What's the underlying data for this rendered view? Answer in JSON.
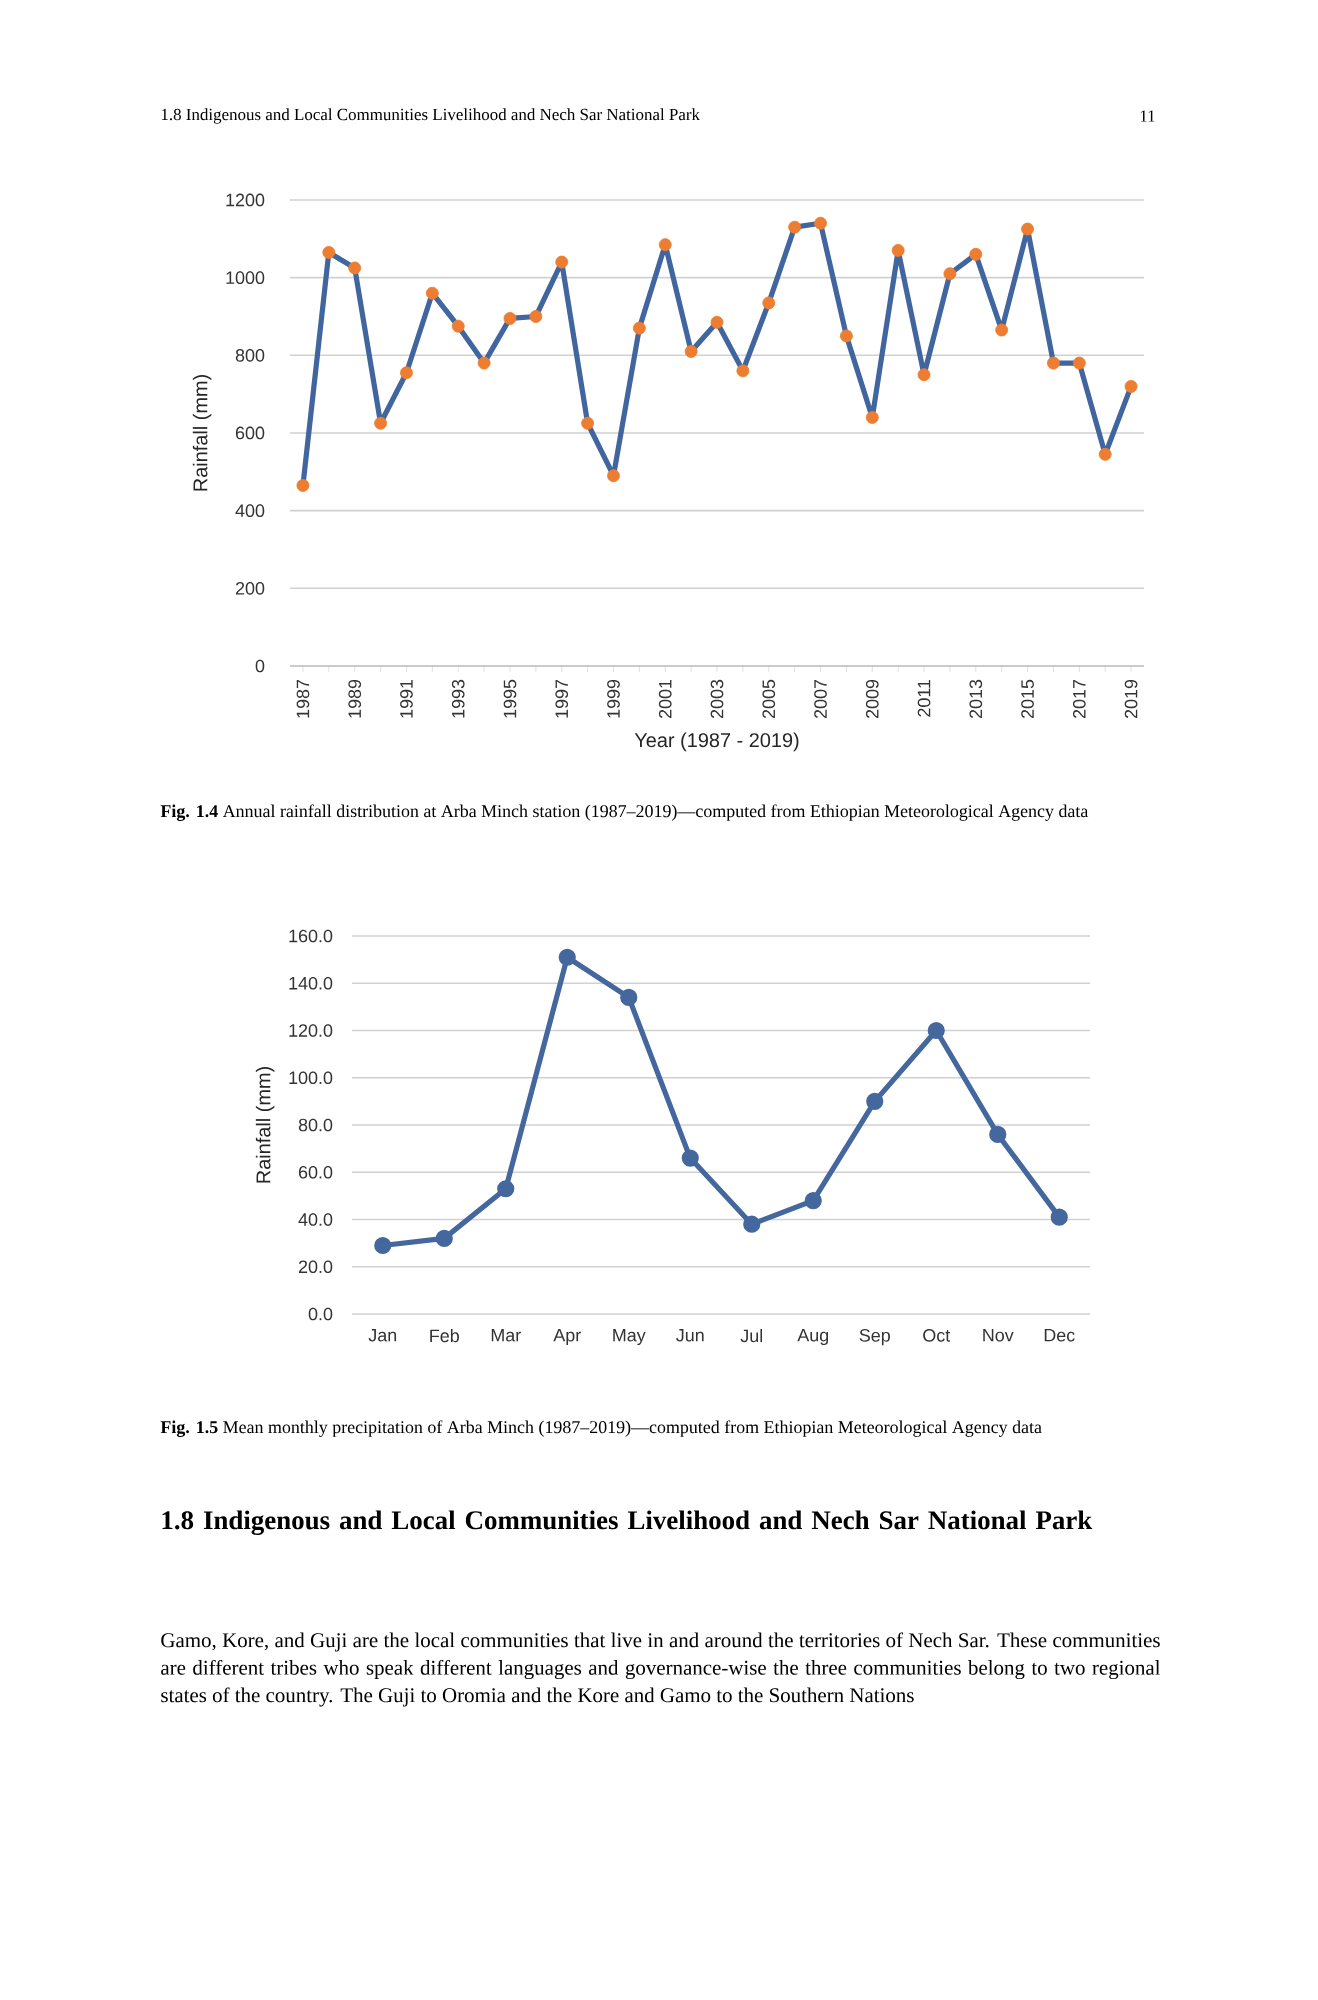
{
  "chart_data": [
    {
      "type": "line",
      "ylabel": "Rainfall (mm)",
      "xlabel": "Year (1987 - 2019)",
      "categories": [
        "1987",
        null,
        "1989",
        null,
        "1991",
        null,
        "1993",
        null,
        "1995",
        null,
        "1997",
        null,
        "1999",
        null,
        "2001",
        null,
        "2003",
        null,
        "2005",
        null,
        "2007",
        null,
        "2009",
        null,
        "2011",
        null,
        "2013",
        null,
        "2015",
        null,
        "2017",
        null,
        "2019"
      ],
      "series": [
        {
          "type": "line",
          "marker": "none",
          "color": "#41669f",
          "values": [
            465,
            1065,
            1025,
            625,
            755,
            960,
            875,
            780,
            895,
            900,
            1040,
            625,
            490,
            870,
            1085,
            810,
            885,
            760,
            935,
            1130,
            1140,
            850,
            640,
            1070,
            750,
            1010,
            1060,
            865,
            1125,
            780,
            780,
            545,
            720
          ]
        },
        {
          "type": "scatter",
          "color": "#ed7d31",
          "values": [
            465,
            1065,
            1025,
            625,
            755,
            960,
            875,
            780,
            895,
            900,
            1040,
            625,
            490,
            870,
            1085,
            810,
            885,
            760,
            935,
            1130,
            1140,
            850,
            640,
            1070,
            750,
            1010,
            1060,
            865,
            1125,
            780,
            780,
            545,
            720
          ]
        }
      ],
      "ylim": [
        0,
        1200
      ],
      "yticks": [
        0,
        200,
        400,
        600,
        800,
        1000,
        1200
      ],
      "grid": "y",
      "marker": "circle",
      "annotations": [
        "1.8 Indigenous and Local Communities Livelihood and Nech Sar National Park",
        "11",
        "**Fig. 1.4** Annual rainfall distribution at Arba Minch station (1987–2019)—computed from Ethiopian Meteorological Agency data"
      ]
    },
    {
      "type": "line",
      "ylabel": "Rainfall (mm)",
      "categories": [
        "Jan",
        "Feb",
        "Mar",
        "Apr",
        "May",
        "Jun",
        "Jul",
        "Aug",
        "Sep",
        "Oct",
        "Nov",
        "Dec"
      ],
      "series": [
        {
          "color": "#44679e",
          "values": [
            29,
            32,
            53,
            151,
            134,
            66,
            38,
            48,
            90,
            120,
            76,
            41
          ]
        }
      ],
      "ylim": [
        0,
        160
      ],
      "yticks": [
        {
          "value": 0,
          "label": "0.0"
        },
        {
          "value": 20,
          "label": "20.0"
        },
        {
          "value": 40,
          "label": "40.0"
        },
        {
          "value": 60,
          "label": "60.0"
        },
        {
          "value": 80,
          "label": "80.0"
        },
        {
          "value": 100,
          "label": "100.0"
        },
        {
          "value": 120,
          "label": "120.0"
        },
        {
          "value": 140,
          "label": "140.0"
        },
        {
          "value": 160,
          "label": "160.0"
        }
      ],
      "grid": "y",
      "marker": "circle",
      "annotations": [
        "**Fig. 1.5** Mean monthly precipitation of Arba Minch (1987–2019)—computed from Ethiopian Meteorological Agency data",
        "1.8 Indigenous and Local Communities Livelihood and Nech Sar National Park",
        "Gamo, Kore, and Guji are the local communities that live in and around the territories of Nech Sar. These communities are different tribes who speak different languages and governance-wise the three communities belong to two regional states of the country. The Guji to Oromia and the Kore and Gamo to the Southern Nations"
      ]
    }
  ]
}
